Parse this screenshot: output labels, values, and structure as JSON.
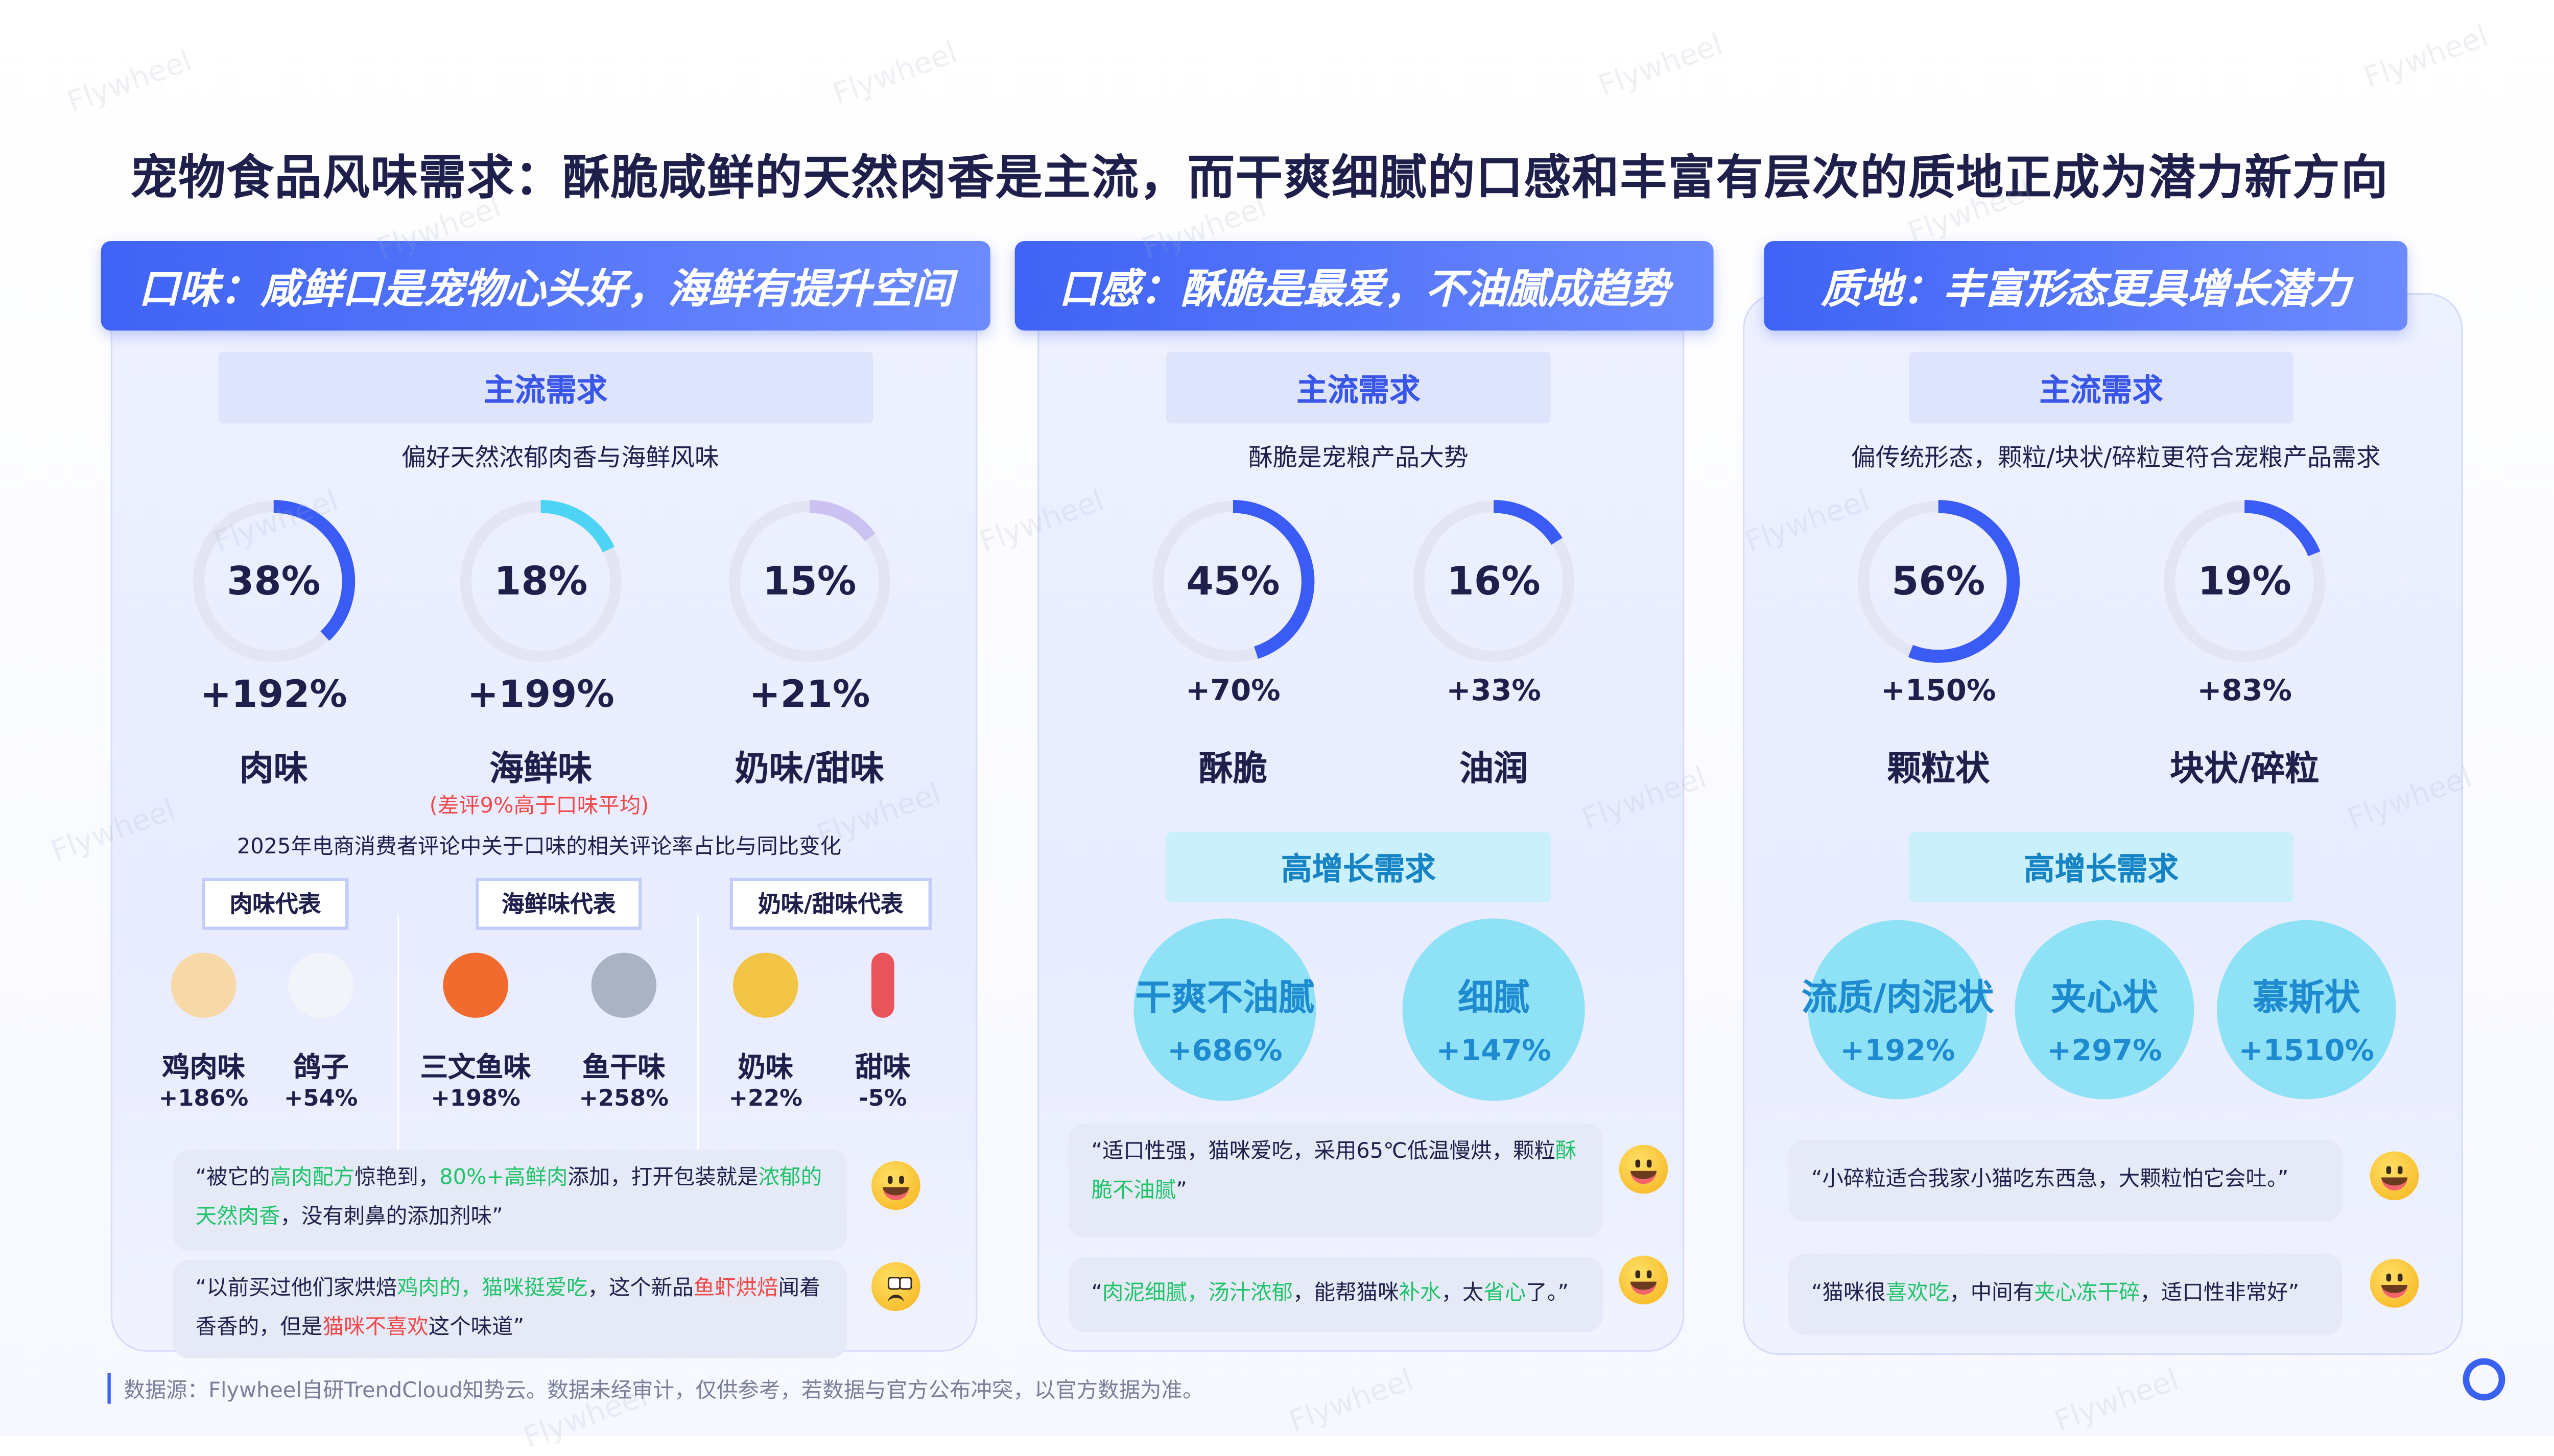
{
  "title": "宠物食品风味需求：酥脆咸鲜的天然肉香是主流，而干爽细腻的口感和丰富有层次的质地正成为潜力新方向",
  "colors": {
    "accent": "#3f63f5",
    "ring_blue": "#3a5cf5",
    "ring_cyan": "#4dd4f5",
    "ring_lavender": "#cbc2f2",
    "ring_track": "#e3e6f2",
    "green": "#1fc46a",
    "red": "#f04a4a"
  },
  "watermark": "Flywheel",
  "panels": [
    {
      "banner": "口味：咸鲜口是宠物心头好，海鲜有提升空间",
      "main_label": "主流需求",
      "main_sub": "偏好天然浓郁肉香与海鲜风味",
      "rings": [
        {
          "pct": 38,
          "text": "38%",
          "growth": "+192%",
          "label": "肉味",
          "color": "#3a5cf5"
        },
        {
          "pct": 18,
          "text": "18%",
          "growth": "+199%",
          "label": "海鲜味",
          "color": "#4dd4f5"
        },
        {
          "pct": 15,
          "text": "15%",
          "growth": "+21%",
          "label": "奶味/甜味",
          "color": "#cbc2f2"
        }
      ],
      "note": "(差评9%高于口味平均)",
      "caption": "2025年电商消费者评论中关于口味的相关评论率占比与同比变化",
      "tags": [
        "肉味代表",
        "海鲜味代表",
        "奶味/甜味代表"
      ],
      "items": [
        {
          "name": "鸡肉味",
          "pct": "+186%",
          "icon": "chicken-icon"
        },
        {
          "name": "鸽子",
          "pct": "+54%",
          "icon": "dove-icon"
        },
        {
          "name": "三文鱼味",
          "pct": "+198%",
          "icon": "salmon-sushi-icon"
        },
        {
          "name": "鱼干味",
          "pct": "+258%",
          "icon": "fish-icon"
        },
        {
          "name": "奶味",
          "pct": "+22%",
          "icon": "milk-cheese-icon"
        },
        {
          "name": "甜味",
          "pct": "-5%",
          "icon": "candy-icon"
        }
      ],
      "quotes": [
        {
          "mood": "happy",
          "segs": [
            {
              "t": "“被它的"
            },
            {
              "t": "高肉配方",
              "c": "g"
            },
            {
              "t": "惊艳到，"
            },
            {
              "t": "80%+高鲜肉",
              "c": "g"
            },
            {
              "t": "添加，打开包装就是"
            },
            {
              "t": "浓郁的天然肉香",
              "c": "g"
            },
            {
              "t": "，没有刺鼻的添加剂味”"
            }
          ]
        },
        {
          "mood": "sad",
          "segs": [
            {
              "t": "“以前买过他们家烘焙"
            },
            {
              "t": "鸡肉的，猫咪挺爱吃",
              "c": "g"
            },
            {
              "t": "，这个新品"
            },
            {
              "t": "鱼虾烘焙",
              "c": "r"
            },
            {
              "t": "闻着香香的，但是"
            },
            {
              "t": "猫咪不喜欢",
              "c": "r"
            },
            {
              "t": "这个味道”"
            }
          ]
        }
      ]
    },
    {
      "banner": "口感：酥脆是最爱，不油腻成趋势",
      "main_label": "主流需求",
      "main_sub": "酥脆是宠粮产品大势",
      "rings": [
        {
          "pct": 45,
          "text": "45%",
          "growth": "+70%",
          "label": "酥脆",
          "color": "#3a5cf5"
        },
        {
          "pct": 16,
          "text": "16%",
          "growth": "+33%",
          "label": "油润",
          "color": "#3a5cf5"
        }
      ],
      "high_label": "高增长需求",
      "bubbles": [
        {
          "label": "干爽不油腻",
          "pct": "+686%"
        },
        {
          "label": "细腻",
          "pct": "+147%"
        }
      ],
      "quotes": [
        {
          "mood": "happy",
          "segs": [
            {
              "t": "“适口性强，猫咪爱吃，采用65℃低温慢烘，颗粒"
            },
            {
              "t": "酥脆不油腻",
              "c": "g"
            },
            {
              "t": "”"
            }
          ]
        },
        {
          "mood": "happy",
          "segs": [
            {
              "t": "“"
            },
            {
              "t": "肉泥细腻，汤汁浓郁",
              "c": "g"
            },
            {
              "t": "，能帮猫咪"
            },
            {
              "t": "补水",
              "c": "g"
            },
            {
              "t": "，太"
            },
            {
              "t": "省心",
              "c": "g"
            },
            {
              "t": "了。”"
            }
          ]
        }
      ]
    },
    {
      "banner": "质地：丰富形态更具增长潜力",
      "main_label": "主流需求",
      "main_sub": "偏传统形态，颗粒/块状/碎粒更符合宠粮产品需求",
      "rings": [
        {
          "pct": 56,
          "text": "56%",
          "growth": "+150%",
          "label": "颗粒状",
          "color": "#3a5cf5"
        },
        {
          "pct": 19,
          "text": "19%",
          "growth": "+83%",
          "label": "块状/碎粒",
          "color": "#3a5cf5"
        }
      ],
      "high_label": "高增长需求",
      "bubbles": [
        {
          "label": "流质/肉泥状",
          "pct": "+192%"
        },
        {
          "label": "夹心状",
          "pct": "+297%"
        },
        {
          "label": "慕斯状",
          "pct": "+1510%"
        }
      ],
      "quotes": [
        {
          "mood": "happy",
          "segs": [
            {
              "t": "“小碎粒适合我家小猫吃东西急，大颗粒怕它会吐。”"
            }
          ]
        },
        {
          "mood": "happy",
          "segs": [
            {
              "t": "“猫咪很"
            },
            {
              "t": "喜欢吃",
              "c": "g"
            },
            {
              "t": "，中间有"
            },
            {
              "t": "夹心冻干碎",
              "c": "g"
            },
            {
              "t": "，适口性非常好”"
            }
          ]
        }
      ]
    }
  ],
  "footer": "数据源：Flywheel自研TrendCloud知势云。数据未经审计，仅供参考，若数据与官方公布冲突，以官方数据为准。"
}
